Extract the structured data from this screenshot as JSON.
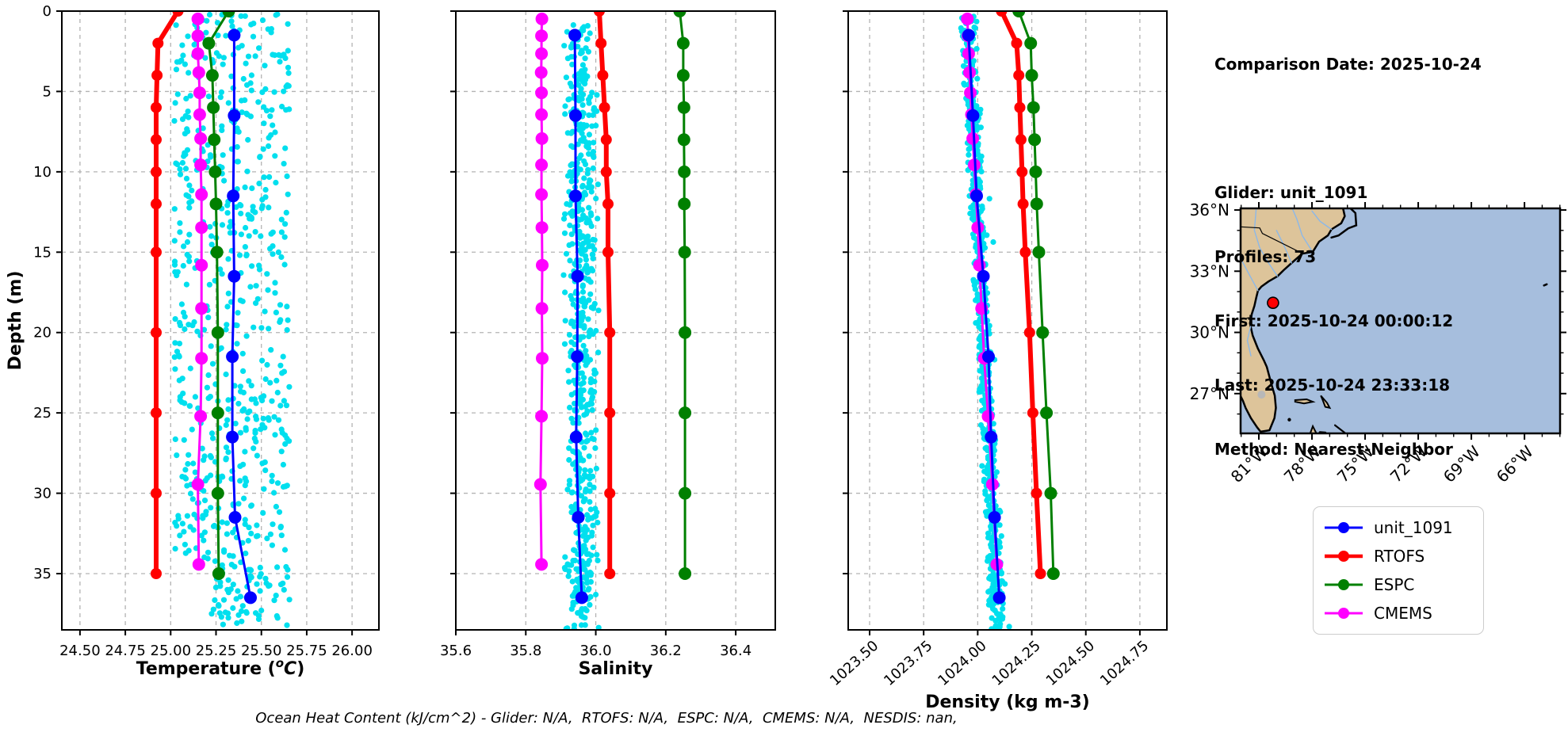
{
  "info_panel": {
    "comparison_date": "Comparison Date: 2025-10-24",
    "lines": [
      "Glider: unit_1091",
      "Profiles: 73",
      "First: 2025-10-24 00:00:12",
      "Last: 2025-10-24 23:33:18",
      "Method: Nearest-Neighbor"
    ]
  },
  "footer": "Ocean Heat Content (kJ/cm^2) - Glider: N/A,  RTOFS: N/A,  ESPC: N/A,  CMEMS: N/A,  NESDIS: nan,",
  "ylabel": "Depth (m)",
  "depth_ticks": [
    0,
    5,
    10,
    15,
    20,
    25,
    30,
    35
  ],
  "colors": {
    "glider": "#0000ff",
    "rtofs": "#ff0000",
    "espc": "#008000",
    "cmems": "#ff00ff",
    "scatter": "#00dfee",
    "grid": "#b3b3b3",
    "land": "#ddc49a",
    "ocean": "#a6bedd",
    "river": "#8cb8e8",
    "coast": "#000000",
    "marker": "#ff0000"
  },
  "legend": {
    "items": [
      {
        "label": "unit_1091",
        "color": "#0000ff",
        "line_width": 3
      },
      {
        "label": "RTOFS",
        "color": "#ff0000",
        "line_width": 4.5
      },
      {
        "label": "ESPC",
        "color": "#008000",
        "line_width": 3
      },
      {
        "label": "CMEMS",
        "color": "#ff00ff",
        "line_width": 3
      }
    ]
  },
  "chart_data": [
    {
      "type": "scatter",
      "id": "temperature",
      "xlabel_parts": [
        {
          "t": "Temperature ("
        },
        {
          "t": "o",
          "sup": true,
          "italic": true
        },
        {
          "t": "C",
          "italic": true
        },
        {
          "t": ")"
        }
      ],
      "ylabel": "Depth (m)",
      "xlim": [
        24.4,
        26.148
      ],
      "ylim": [
        38.5,
        0
      ],
      "xticks": [
        24.5,
        24.75,
        25.0,
        25.25,
        25.5,
        25.75,
        26.0
      ],
      "xtick_labels": [
        "24.50",
        "24.75",
        "25.00",
        "25.25",
        "25.50",
        "25.75",
        "26.00"
      ],
      "xtick_rotation": 0,
      "grid": true,
      "show_ytick_labels": true,
      "scatter": {
        "name": "glider-raw-temperature",
        "color": "#00dfee",
        "marker_radius": 3.6,
        "n": 640,
        "distribution": "uniform",
        "depth_range": [
          0,
          38.3
        ],
        "value_range": [
          25.02,
          25.655
        ],
        "deep_min": 25.22
      },
      "series": [
        {
          "name": "CMEMS",
          "color": "#ff00ff",
          "line_width": 3,
          "marker_radius": 8,
          "depths": [
            0.49,
            1.54,
            2.65,
            3.82,
            5.08,
            6.44,
            7.93,
            9.57,
            11.41,
            13.47,
            15.81,
            18.5,
            21.6,
            25.21,
            29.45,
            34.43
          ],
          "values": [
            25.15,
            25.15,
            25.15,
            25.155,
            25.16,
            25.16,
            25.165,
            25.165,
            25.17,
            25.17,
            25.17,
            25.17,
            25.17,
            25.165,
            25.15,
            25.155
          ]
        },
        {
          "name": "ESPC",
          "color": "#008000",
          "line_width": 3,
          "marker_radius": 8,
          "depths": [
            0,
            2,
            4,
            6,
            8,
            10,
            12,
            15,
            20,
            25,
            30,
            35
          ],
          "values": [
            25.32,
            25.21,
            25.23,
            25.235,
            25.24,
            25.245,
            25.25,
            25.255,
            25.26,
            25.26,
            25.26,
            25.265
          ]
        },
        {
          "name": "RTOFS",
          "color": "#ff0000",
          "line_width": 6,
          "marker_radius": 7,
          "depths": [
            0,
            2,
            4,
            6,
            8,
            10,
            12,
            15,
            20,
            25,
            30,
            35
          ],
          "values": [
            25.04,
            24.93,
            24.925,
            24.92,
            24.92,
            24.92,
            24.92,
            24.92,
            24.92,
            24.92,
            24.92,
            24.92
          ]
        },
        {
          "name": "unit_1091",
          "color": "#0000ff",
          "line_width": 3,
          "marker_radius": 8,
          "depths": [
            1.5,
            6.5,
            11.5,
            16.5,
            21.5,
            26.5,
            31.5,
            36.5
          ],
          "values": [
            25.35,
            25.35,
            25.345,
            25.35,
            25.34,
            25.34,
            25.355,
            25.44
          ]
        }
      ]
    },
    {
      "type": "scatter",
      "id": "salinity",
      "xlabel_parts": [
        {
          "t": "Salinity"
        }
      ],
      "ylabel": "Depth (m)",
      "xlim": [
        35.6,
        36.513
      ],
      "ylim": [
        38.5,
        0
      ],
      "xticks": [
        35.6,
        35.8,
        36.0,
        36.2,
        36.4
      ],
      "xtick_labels": [
        "35.6",
        "35.8",
        "36.0",
        "36.2",
        "36.4"
      ],
      "xtick_rotation": 0,
      "grid": true,
      "show_ytick_labels": false,
      "scatter": {
        "name": "glider-raw-salinity",
        "color": "#00dfee",
        "marker_radius": 3.6,
        "n": 620,
        "distribution": "column",
        "depth_range": [
          0.8,
          38.5
        ],
        "center": 35.957,
        "half_width": 0.052
      },
      "series": [
        {
          "name": "CMEMS",
          "color": "#ff00ff",
          "line_width": 3,
          "marker_radius": 8,
          "depths": [
            0.49,
            1.54,
            2.65,
            3.82,
            5.08,
            6.44,
            7.93,
            9.57,
            11.41,
            13.47,
            15.81,
            18.5,
            21.6,
            25.21,
            29.45,
            34.43
          ],
          "values": [
            35.846,
            35.845,
            35.845,
            35.844,
            35.845,
            35.845,
            35.846,
            35.845,
            35.845,
            35.846,
            35.847,
            35.846,
            35.847,
            35.845,
            35.842,
            35.845
          ]
        },
        {
          "name": "ESPC",
          "color": "#008000",
          "line_width": 3,
          "marker_radius": 8,
          "depths": [
            0,
            2,
            4,
            6,
            8,
            10,
            12,
            15,
            20,
            25,
            30,
            35
          ],
          "values": [
            36.24,
            36.25,
            36.25,
            36.252,
            36.252,
            36.253,
            36.253,
            36.254,
            36.255,
            36.255,
            36.255,
            36.255
          ]
        },
        {
          "name": "RTOFS",
          "color": "#ff0000",
          "line_width": 6,
          "marker_radius": 7,
          "depths": [
            0,
            2,
            4,
            6,
            8,
            10,
            12,
            15,
            20,
            25,
            30,
            35
          ],
          "values": [
            36.01,
            36.015,
            36.02,
            36.025,
            36.03,
            36.03,
            36.035,
            36.035,
            36.04,
            36.04,
            36.04,
            36.04
          ]
        },
        {
          "name": "unit_1091",
          "color": "#0000ff",
          "line_width": 3,
          "marker_radius": 8,
          "depths": [
            1.5,
            6.5,
            11.5,
            16.5,
            21.5,
            26.5,
            31.5,
            36.5
          ],
          "values": [
            35.94,
            35.942,
            35.942,
            35.948,
            35.947,
            35.944,
            35.95,
            35.96
          ]
        }
      ]
    },
    {
      "type": "scatter",
      "id": "density",
      "xlabel_parts": [
        {
          "t": "Density (kg m-3)"
        }
      ],
      "ylabel": "Depth (m)",
      "xlim": [
        1023.401,
        1024.875
      ],
      "ylim": [
        38.5,
        0
      ],
      "xticks": [
        1023.5,
        1023.75,
        1024.0,
        1024.25,
        1024.5,
        1024.75
      ],
      "xtick_labels": [
        "1023.50",
        "1023.75",
        "1024.00",
        "1024.25",
        "1024.50",
        "1024.75"
      ],
      "xtick_rotation": 45,
      "grid": true,
      "show_ytick_labels": false,
      "scatter": {
        "name": "glider-raw-density",
        "color": "#00dfee",
        "marker_radius": 3.6,
        "n": 650,
        "distribution": "tilted",
        "depth_range": [
          0.3,
          38.5
        ],
        "base": 1023.952,
        "slope": 0.0036,
        "half_width": 0.04
      },
      "series": [
        {
          "name": "CMEMS",
          "color": "#ff00ff",
          "line_width": 3,
          "marker_radius": 8,
          "depths": [
            0.49,
            1.54,
            2.65,
            3.82,
            5.08,
            6.44,
            7.93,
            9.57,
            11.41,
            13.47,
            15.81,
            18.5,
            21.6,
            25.21,
            29.45,
            34.43
          ],
          "values": [
            1023.952,
            1023.955,
            1023.958,
            1023.962,
            1023.966,
            1023.971,
            1023.977,
            1023.984,
            1023.992,
            1024.0,
            1024.008,
            1024.018,
            1024.03,
            1024.048,
            1024.068,
            1024.088
          ]
        },
        {
          "name": "ESPC",
          "color": "#008000",
          "line_width": 3,
          "marker_radius": 8,
          "depths": [
            0,
            2,
            4,
            6,
            8,
            10,
            12,
            15,
            20,
            25,
            30,
            35
          ],
          "values": [
            1024.19,
            1024.245,
            1024.25,
            1024.258,
            1024.263,
            1024.268,
            1024.273,
            1024.283,
            1024.3,
            1024.318,
            1024.338,
            1024.35
          ]
        },
        {
          "name": "RTOFS",
          "color": "#ff0000",
          "line_width": 6,
          "marker_radius": 7,
          "depths": [
            0,
            2,
            4,
            6,
            8,
            10,
            12,
            15,
            20,
            25,
            30,
            35
          ],
          "values": [
            1024.11,
            1024.18,
            1024.19,
            1024.195,
            1024.2,
            1024.205,
            1024.21,
            1024.22,
            1024.24,
            1024.255,
            1024.272,
            1024.29
          ]
        },
        {
          "name": "unit_1091",
          "color": "#0000ff",
          "line_width": 3,
          "marker_radius": 8,
          "depths": [
            1.5,
            6.5,
            11.5,
            16.5,
            21.5,
            26.5,
            31.5,
            36.5
          ],
          "values": [
            1023.958,
            1023.978,
            1023.995,
            1024.026,
            1024.05,
            1024.062,
            1024.078,
            1024.1
          ]
        }
      ]
    }
  ],
  "map": {
    "lat_tick_labels": [
      "36°N",
      "33°N",
      "30°N",
      "27°N"
    ],
    "lat_tick_values": [
      36,
      33,
      30,
      27
    ],
    "lon_tick_labels": [
      "81°W",
      "78°W",
      "75°W",
      "72°W",
      "69°W",
      "66°W"
    ],
    "lon_tick_values": [
      -81,
      -78,
      -75,
      -72,
      -69,
      -66
    ],
    "extent": {
      "lon": [
        -82.03,
        -63.99
      ],
      "lat": [
        25.05,
        36.08
      ]
    },
    "marker": {
      "lon": -80.2,
      "lat": 31.45,
      "color": "#ff0000"
    }
  }
}
